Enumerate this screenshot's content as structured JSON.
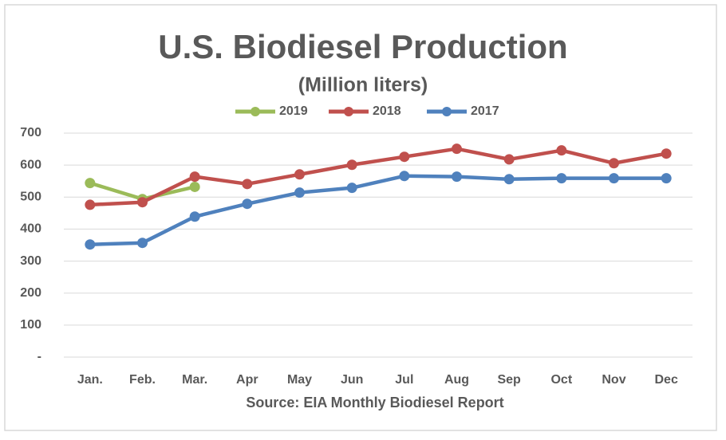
{
  "chart_data": {
    "type": "line",
    "title": "U.S. Biodiesel Production",
    "subtitle": "(Million liters)",
    "note": "Source: EIA Monthly Biodiesel Report",
    "categories": [
      "Jan.",
      "Feb.",
      "Mar.",
      "Apr",
      "May",
      "Jun",
      "Jul",
      "Aug",
      "Sep",
      "Oct",
      "Nov",
      "Dec"
    ],
    "series": [
      {
        "name": "2019",
        "color": "#9bbb59",
        "values": [
          544,
          494,
          532,
          null,
          null,
          null,
          null,
          null,
          null,
          null,
          null,
          null
        ]
      },
      {
        "name": "2018",
        "color": "#c0504d",
        "values": [
          476,
          484,
          564,
          541,
          571,
          601,
          626,
          651,
          618,
          646,
          606,
          636
        ]
      },
      {
        "name": "2017",
        "color": "#4f81bd",
        "values": [
          352,
          357,
          439,
          479,
          514,
          529,
          566,
          564,
          556,
          559,
          559,
          559
        ]
      }
    ],
    "ylim": [
      0,
      700
    ],
    "yticks": [
      {
        "value": 0,
        "label": "-"
      },
      100,
      200,
      300,
      400,
      500,
      600,
      700
    ],
    "grid": true,
    "legend": "top"
  }
}
